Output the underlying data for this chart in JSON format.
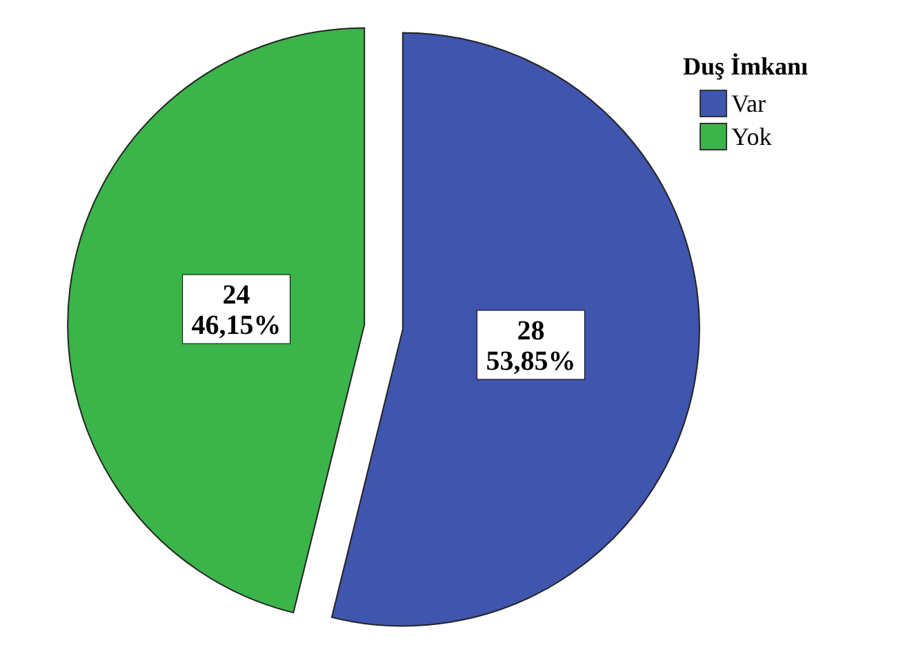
{
  "chart_data": {
    "type": "pie",
    "legend_title": "Duş İmkanı",
    "categories": [
      "Var",
      "Yok"
    ],
    "values": [
      28,
      24
    ],
    "colors": [
      "#3f55ae",
      "#3bb44a"
    ],
    "value_labels": [
      "28\n53,85%",
      "24\n46,15%"
    ],
    "legend": "top right"
  }
}
